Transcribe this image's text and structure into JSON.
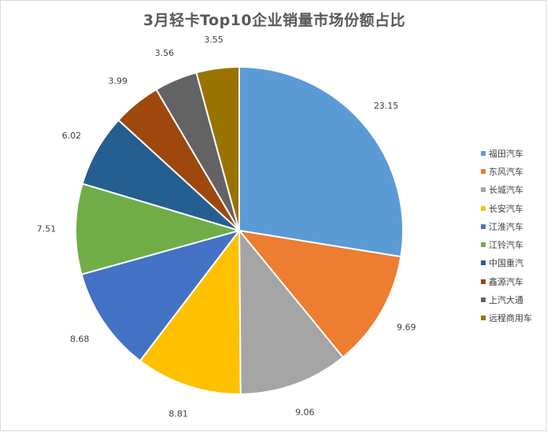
{
  "chart_data": {
    "type": "pie",
    "title": "3月轻卡Top10企业销量市场份额占比",
    "categories": [
      "福田汽车",
      "东风汽车",
      "长城汽车",
      "长安汽车",
      "江淮汽车",
      "江铃汽车",
      "中国重汽",
      "鑫源汽车",
      "上汽大通",
      "远程商用车"
    ],
    "values": [
      23.15,
      9.69,
      9.06,
      8.81,
      8.68,
      7.51,
      6.02,
      3.99,
      3.56,
      3.55
    ],
    "labels": [
      "23.15",
      "9.69",
      "9.06",
      "8.81",
      "8.68",
      "7.51",
      "6.02",
      "3.99",
      "3.56",
      "3.55"
    ],
    "colors": [
      "#5b9bd5",
      "#ed7d31",
      "#a5a5a5",
      "#ffc000",
      "#4472c4",
      "#70ad47",
      "#255e91",
      "#9e480e",
      "#636363",
      "#997300"
    ],
    "legend_position": "right",
    "start_angle": "12 o'clock",
    "direction": "clockwise"
  }
}
